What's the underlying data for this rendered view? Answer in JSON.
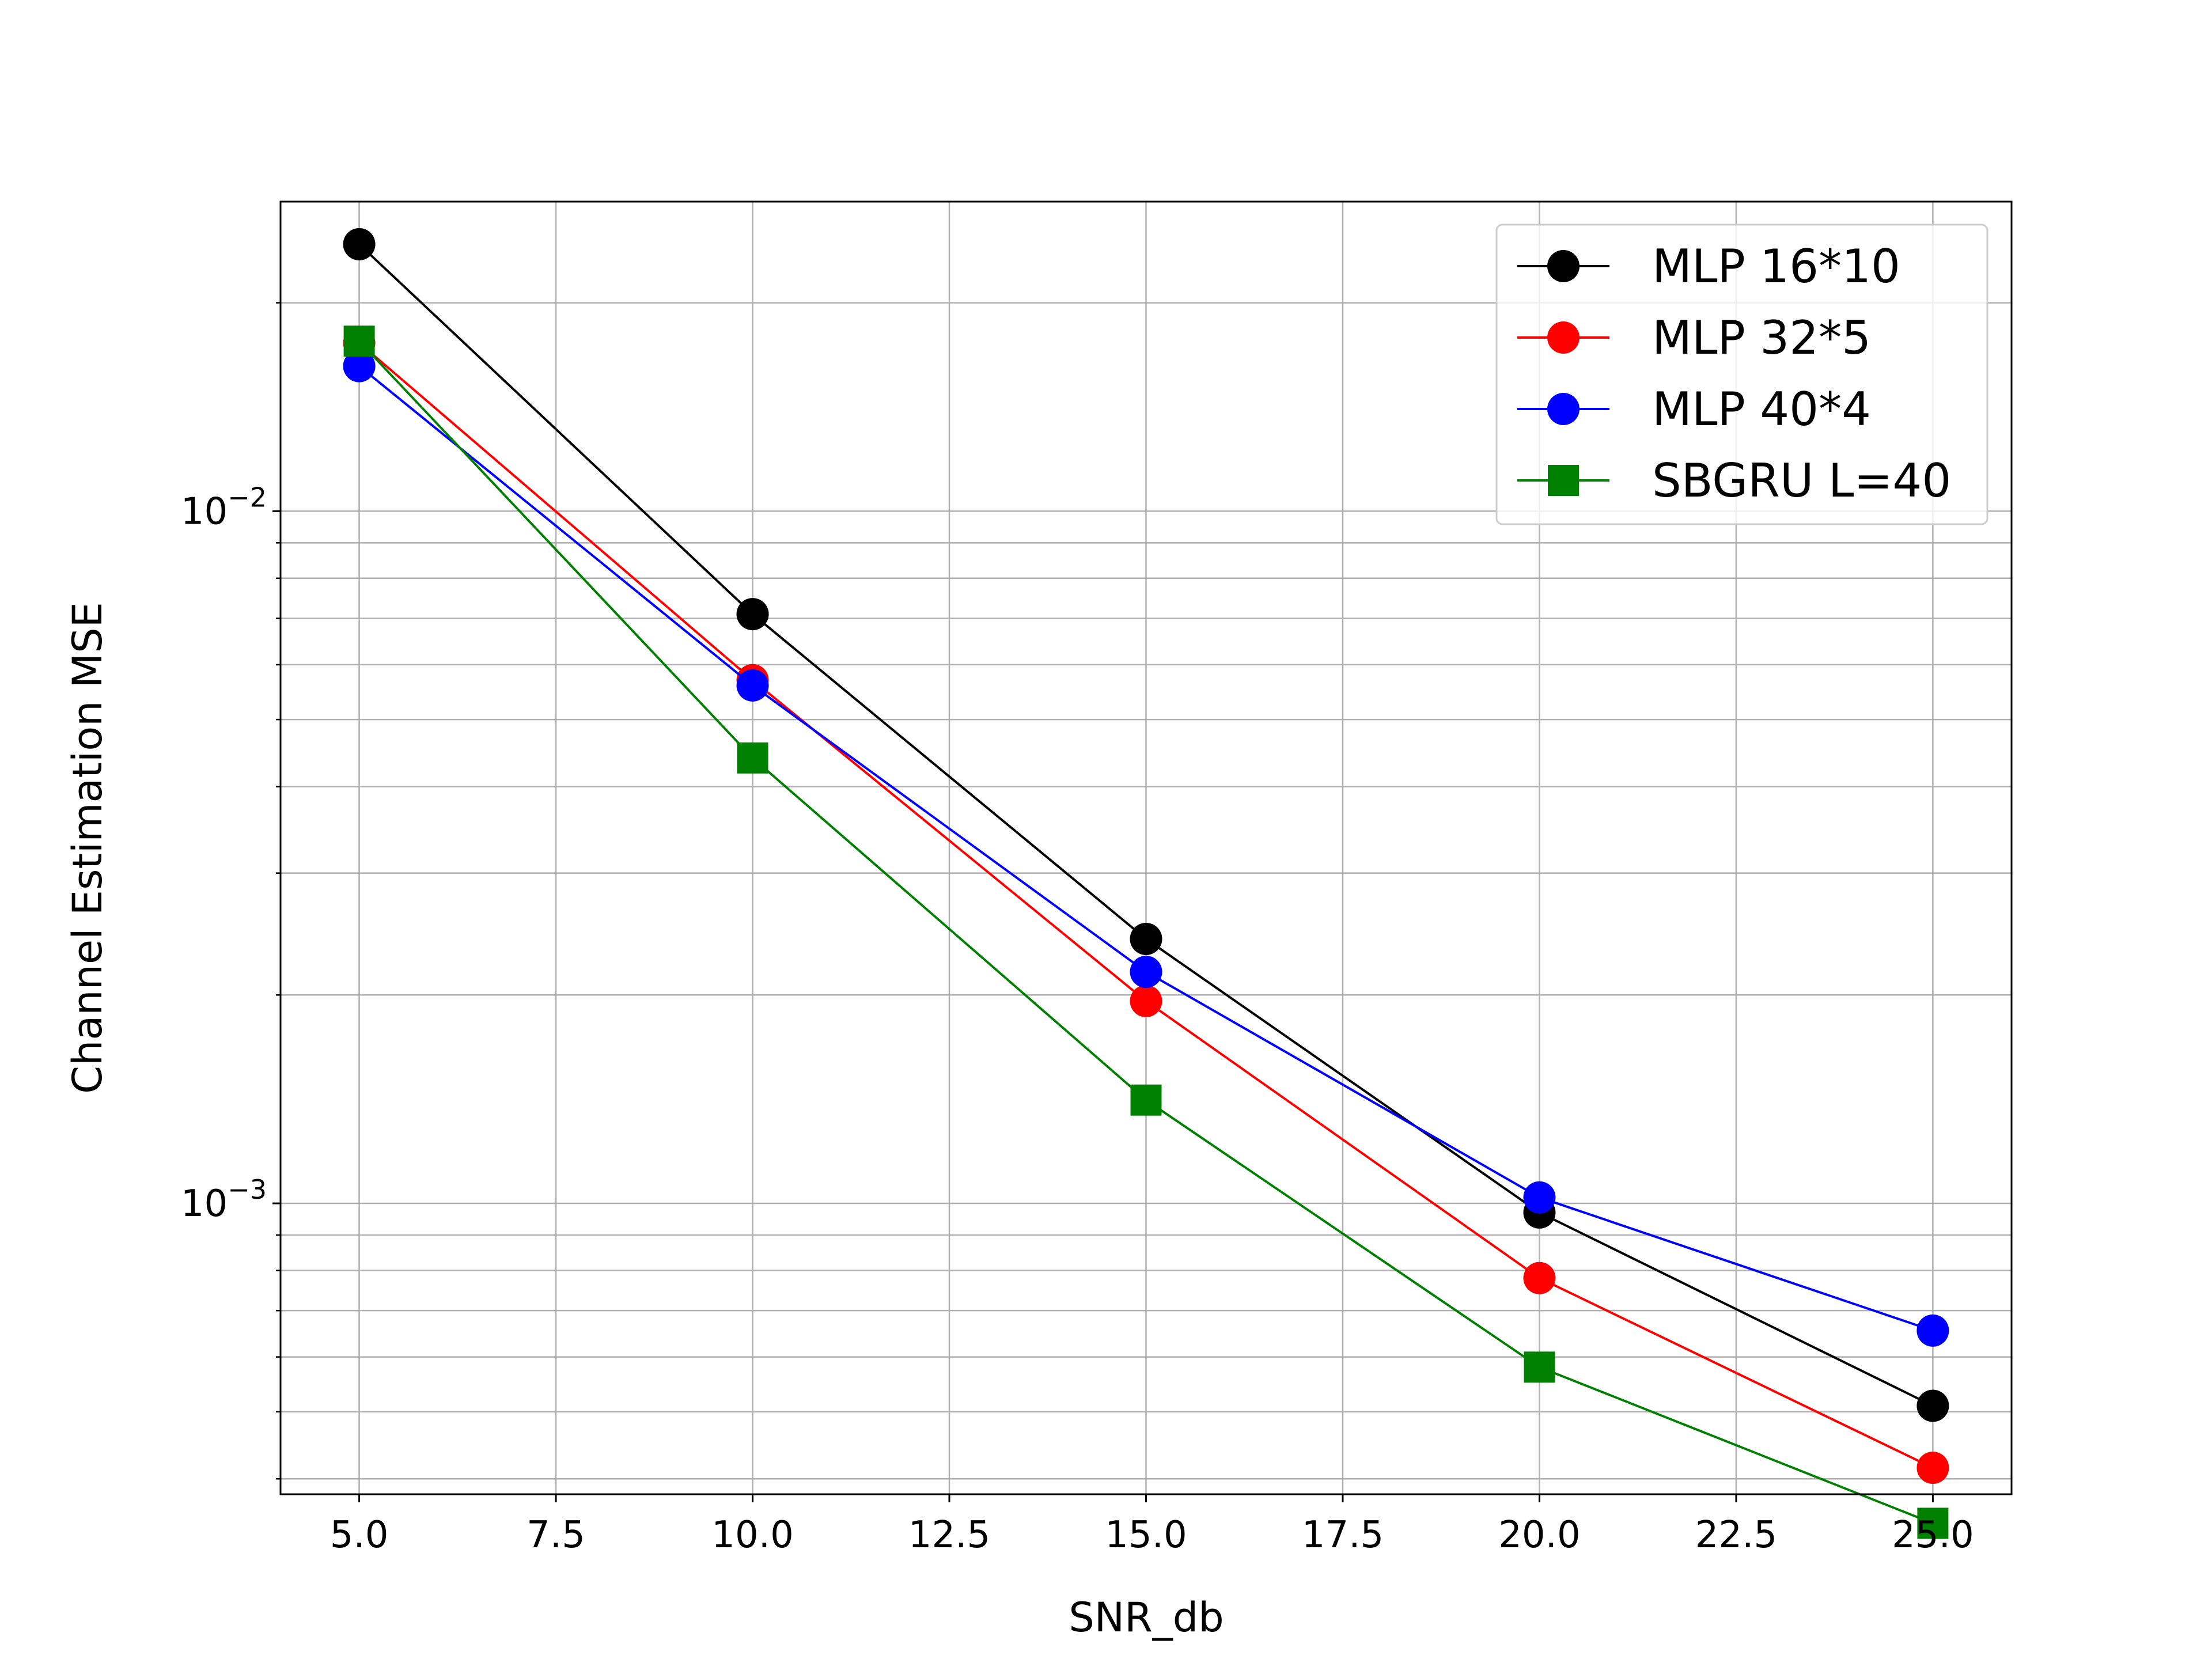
{
  "chart_data": {
    "type": "line",
    "title": "",
    "xlabel": "SNR_db",
    "ylabel": "Channel Estimation MSE",
    "xlim": [
      4.0,
      26.0
    ],
    "ylim": [
      0.00038,
      0.028
    ],
    "yscale": "log",
    "grid": true,
    "legend_position": "top-right",
    "x": [
      5,
      10,
      15,
      20,
      25
    ],
    "x_ticks": [
      5.0,
      7.5,
      10.0,
      12.5,
      15.0,
      17.5,
      20.0,
      22.5,
      25.0
    ],
    "x_tick_labels": [
      "5.0",
      "7.5",
      "10.0",
      "12.5",
      "15.0",
      "17.5",
      "20.0",
      "22.5",
      "25.0"
    ],
    "y_major_ticks": [
      {
        "value": 0.01,
        "base": "10",
        "exp": "−2"
      },
      {
        "value": 0.001,
        "base": "10",
        "exp": "−3"
      }
    ],
    "series": [
      {
        "name": "MLP 16*10",
        "color": "#000000",
        "marker": "circle",
        "values": [
          0.0243,
          0.0071,
          0.00241,
          0.00097,
          0.00051
        ]
      },
      {
        "name": "MLP 32*5",
        "color": "#ff0000",
        "marker": "circle",
        "values": [
          0.0175,
          0.0057,
          0.00196,
          0.00078,
          0.000415
        ]
      },
      {
        "name": "MLP 40*4",
        "color": "#0000ff",
        "marker": "circle",
        "values": [
          0.0162,
          0.0056,
          0.00216,
          0.00102,
          0.000655
        ]
      },
      {
        "name": "SBGRU L=40",
        "color": "#008000",
        "marker": "square",
        "values": [
          0.0176,
          0.0044,
          0.00141,
          0.00058,
          0.000345
        ]
      }
    ]
  }
}
